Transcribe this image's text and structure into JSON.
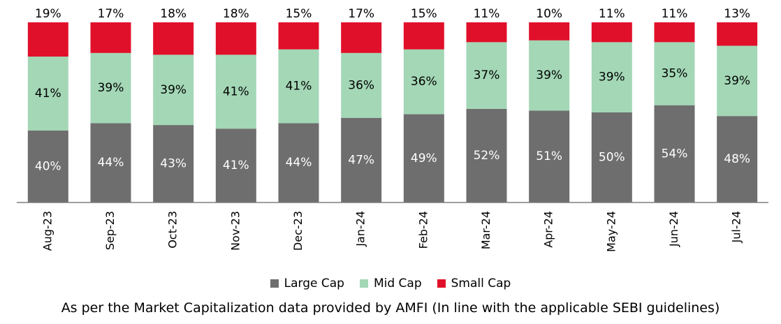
{
  "chart_data": {
    "type": "bar",
    "stacked": true,
    "percent_stacked": true,
    "categories": [
      "Aug-23",
      "Sep-23",
      "Oct-23",
      "Nov-23",
      "Dec-23",
      "Jan-24",
      "Feb-24",
      "Mar-24",
      "Apr-24",
      "May-24",
      "Jun-24",
      "Jul-24"
    ],
    "series": [
      {
        "name": "Large Cap",
        "color": "#6e6e6e",
        "values": [
          40,
          44,
          43,
          41,
          44,
          47,
          49,
          52,
          51,
          50,
          54,
          48
        ]
      },
      {
        "name": "Mid Cap",
        "color": "#a3d7b6",
        "values": [
          41,
          39,
          39,
          41,
          41,
          36,
          36,
          37,
          39,
          39,
          35,
          39
        ]
      },
      {
        "name": "Small Cap",
        "color": "#e1102a",
        "values": [
          19,
          17,
          18,
          18,
          15,
          17,
          15,
          11,
          10,
          11,
          11,
          13
        ]
      }
    ],
    "legend_placement": "bottom",
    "grid": false
  },
  "legend": {
    "large": "Large Cap",
    "mid": "Mid Cap",
    "small": "Small Cap"
  },
  "footnote": "As per the Market Capitalization data provided by AMFI (In line with the applicable SEBI guidelines)"
}
